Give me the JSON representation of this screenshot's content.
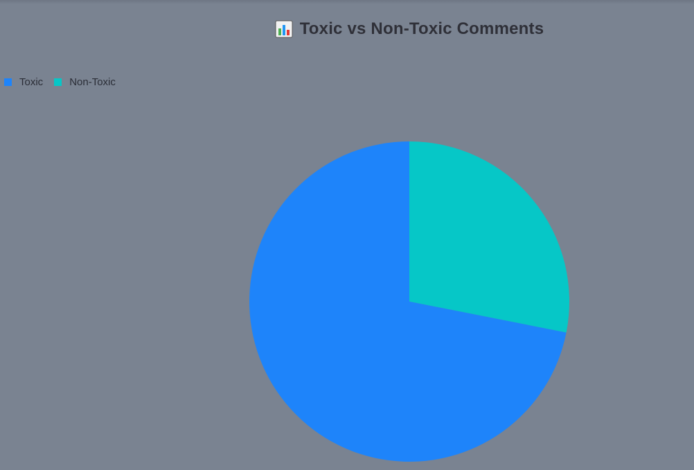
{
  "chart_data": {
    "type": "pie",
    "title": "Toxic vs Non-Toxic Comments",
    "title_icon": "bar-chart-icon",
    "legend_position": "top-left",
    "categories": [
      "Toxic",
      "Non-Toxic"
    ],
    "values": [
      71.9,
      28.1
    ],
    "colors": [
      "#1e84fa",
      "#06c7c7"
    ]
  },
  "theme": {
    "background": "#7a8391",
    "title_color": "#2f3038"
  }
}
